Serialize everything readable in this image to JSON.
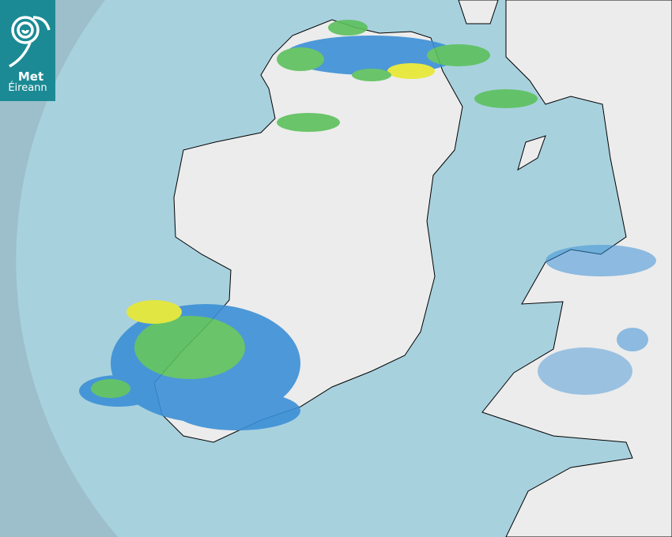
{
  "logo": {
    "line1": "Met",
    "line2": "Éireann",
    "brand_color": "#1b8a94"
  },
  "map": {
    "type": "weather radar",
    "colors": {
      "sea_outside_range": "#9cbfcb",
      "sea_in_range": "#a8d1de",
      "land": "#ececec",
      "rain_light": "#3b8fd6",
      "rain_moderate": "#5cc05c",
      "rain_heavy": "#e8e830"
    }
  }
}
